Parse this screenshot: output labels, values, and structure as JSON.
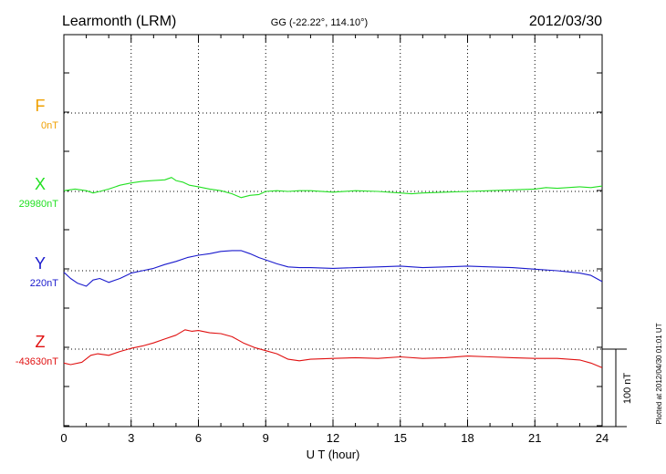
{
  "header": {
    "station": "Learmonth (LRM)",
    "coords": "GG (-22.22°, 114.10°)",
    "date": "2012/03/30"
  },
  "footer": {
    "plotted": "Plotted at 2012/04/30 01:01  UT",
    "scale": "100 nT"
  },
  "chart_data": {
    "type": "line",
    "xlabel": "U T (hour)",
    "xlim": [
      0,
      24
    ],
    "xticks": [
      0,
      3,
      6,
      9,
      12,
      15,
      18,
      21,
      24
    ],
    "grid": true,
    "ylabel": "",
    "series": [
      {
        "name": "F",
        "baseline_label": "0nT",
        "color": "#f0a000",
        "baseline": 0,
        "x": [],
        "values": []
      },
      {
        "name": "X",
        "baseline_label": "29980nT",
        "color": "#22e022",
        "baseline": 29980,
        "x": [
          0,
          0.5,
          1.0,
          1.3,
          1.6,
          2.0,
          2.5,
          3.0,
          3.5,
          4.0,
          4.5,
          4.8,
          5.0,
          5.3,
          5.6,
          6.0,
          6.5,
          7.0,
          7.5,
          7.9,
          8.3,
          8.7,
          9.0,
          9.5,
          10.0,
          10.5,
          11.0,
          12.0,
          13.0,
          14.0,
          15.0,
          15.5,
          16.0,
          17.0,
          18.0,
          19.0,
          20.0,
          21.0,
          21.5,
          22.0,
          23.0,
          23.5,
          24.0
        ],
        "values": [
          29981,
          29983,
          29981,
          29978,
          29980,
          29983,
          29988,
          29991,
          29993,
          29994,
          29995,
          29998,
          29994,
          29992,
          29988,
          29986,
          29983,
          29981,
          29977,
          29972,
          29975,
          29976,
          29980,
          29981,
          29980,
          29981,
          29981,
          29979,
          29981,
          29980,
          29978,
          29977,
          29978,
          29979,
          29980,
          29981,
          29982,
          29983,
          29985,
          29984,
          29986,
          29985,
          29987
        ]
      },
      {
        "name": "Y",
        "baseline_label": "220nT",
        "color": "#1a1acd",
        "baseline": 220,
        "x": [
          0,
          0.3,
          0.6,
          1.0,
          1.3,
          1.6,
          2.0,
          2.5,
          3.0,
          3.5,
          4.0,
          4.5,
          5.0,
          5.5,
          6.0,
          6.5,
          7.0,
          7.5,
          7.9,
          8.3,
          8.7,
          9.0,
          9.5,
          10.0,
          10.5,
          11.0,
          12.0,
          13.0,
          14.0,
          15.0,
          16.0,
          17.0,
          18.0,
          19.0,
          20.0,
          21.0,
          22.0,
          23.0,
          23.5,
          24.0
        ],
        "values": [
          218,
          210,
          204,
          200,
          208,
          210,
          205,
          210,
          217,
          220,
          223,
          228,
          232,
          237,
          240,
          242,
          245,
          246,
          246,
          242,
          237,
          234,
          229,
          225,
          224,
          224,
          223,
          224,
          225,
          226,
          224,
          225,
          226,
          225,
          224,
          222,
          220,
          217,
          214,
          206
        ]
      },
      {
        "name": "Z",
        "baseline_label": "-43630nT",
        "color": "#e01010",
        "baseline": -43630,
        "x": [
          0,
          0.3,
          0.8,
          1.2,
          1.5,
          2.0,
          2.5,
          3.0,
          3.5,
          4.0,
          4.5,
          5.0,
          5.4,
          5.7,
          6.0,
          6.5,
          7.0,
          7.5,
          8.0,
          8.5,
          9.0,
          9.5,
          10.0,
          10.5,
          11.0,
          12.0,
          13.0,
          14.0,
          15.0,
          16.0,
          17.0,
          18.0,
          19.0,
          20.0,
          21.0,
          22.0,
          23.0,
          23.5,
          24.0
        ],
        "values": [
          -43648,
          -43650,
          -43647,
          -43638,
          -43636,
          -43638,
          -43633,
          -43629,
          -43626,
          -43622,
          -43617,
          -43612,
          -43605,
          -43607,
          -43606,
          -43609,
          -43610,
          -43614,
          -43622,
          -43628,
          -43632,
          -43636,
          -43643,
          -43645,
          -43643,
          -43642,
          -43641,
          -43642,
          -43640,
          -43642,
          -43641,
          -43639,
          -43640,
          -43641,
          -43642,
          -43642,
          -43644,
          -43648,
          -43654
        ]
      }
    ]
  }
}
